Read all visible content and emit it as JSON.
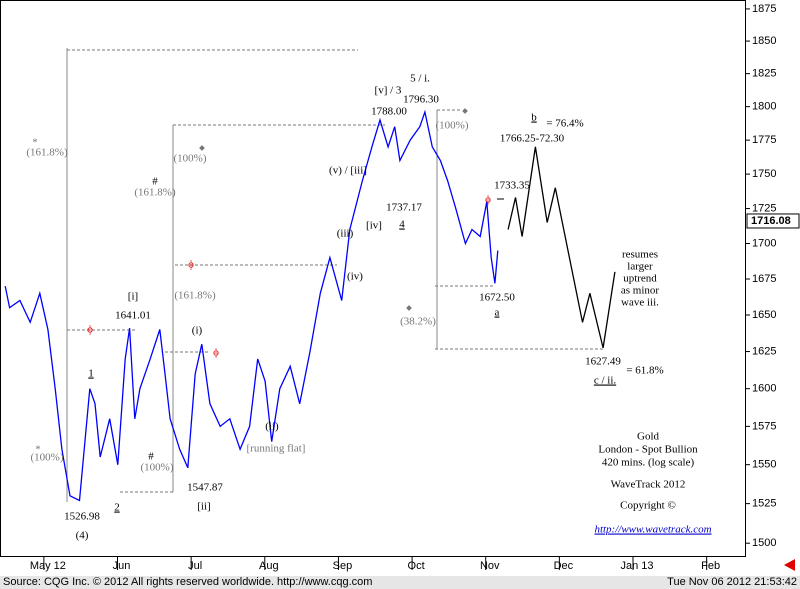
{
  "chart_data": {
    "type": "line",
    "log_scale": true,
    "xlim": [
      4.35,
      14.48
    ],
    "xticks": [
      {
        "value": 5,
        "label": "May 12"
      },
      {
        "value": 6,
        "label": "Jun"
      },
      {
        "value": 7,
        "label": "Jul"
      },
      {
        "value": 8,
        "label": "Aug"
      },
      {
        "value": 9,
        "label": "Sep"
      },
      {
        "value": 10,
        "label": "Oct"
      },
      {
        "value": 11,
        "label": "Nov"
      },
      {
        "value": 12,
        "label": "Dec"
      },
      {
        "value": 13,
        "label": "Jan 13"
      },
      {
        "value": 14,
        "label": "Feb"
      }
    ],
    "ylim": [
      1492,
      1882
    ],
    "yticks": [
      1500,
      1525,
      1550,
      1575,
      1600,
      1625,
      1650,
      1675,
      1700,
      1725,
      1750,
      1775,
      1800,
      1825,
      1850,
      1875
    ],
    "series": [
      {
        "color": "#0000ff",
        "x": [
          4.42,
          4.48,
          4.62,
          4.76,
          4.89,
          5.0,
          5.1,
          5.19,
          5.3,
          5.43,
          5.57,
          5.64,
          5.71,
          5.84,
          5.95,
          6.05,
          6.11,
          6.18,
          6.25,
          6.39,
          6.52,
          6.59,
          6.66,
          6.79,
          6.9,
          7.0,
          7.09,
          7.2,
          7.34,
          7.47,
          7.61,
          7.74,
          7.85,
          7.95,
          8.04,
          8.15,
          8.29,
          8.42,
          8.56,
          8.7,
          8.83,
          8.99,
          9.1,
          9.27,
          9.4,
          9.51,
          9.62,
          9.71,
          9.78,
          9.92,
          10.05,
          10.12,
          10.22,
          10.33,
          10.43,
          10.54,
          10.67,
          10.76,
          10.87,
          10.96,
          11.02,
          11.07,
          11.11
        ],
        "values": [
          1670,
          1655,
          1660,
          1645,
          1665,
          1640,
          1600,
          1560,
          1530,
          1527,
          1600,
          1590,
          1555,
          1580,
          1550,
          1620,
          1641,
          1580,
          1600,
          1620,
          1640,
          1610,
          1580,
          1560,
          1548,
          1610,
          1630,
          1590,
          1575,
          1580,
          1560,
          1575,
          1620,
          1605,
          1565,
          1600,
          1615,
          1590,
          1625,
          1665,
          1690,
          1660,
          1710,
          1745,
          1770,
          1790,
          1770,
          1785,
          1760,
          1775,
          1785,
          1796,
          1770,
          1760,
          1745,
          1725,
          1700,
          1710,
          1705,
          1730,
          1690,
          1672,
          1695
        ]
      },
      {
        "color": "#000000",
        "x": [
          11.25,
          11.35,
          11.44,
          11.62,
          11.78,
          11.89,
          12.26,
          12.36,
          12.54,
          12.7
        ],
        "values": [
          1710,
          1733,
          1705,
          1770,
          1715,
          1740,
          1645,
          1665,
          1627.5,
          1680
        ]
      }
    ],
    "last_price": 1716.08,
    "annotations": [
      "*",
      "(161.8%)",
      "*",
      "(100%)",
      "[i]",
      "1641.01",
      "1",
      "2",
      "1526.98",
      "(4)",
      "#",
      "(161.8%)",
      "(100%)",
      "(161.8%)",
      "(i)",
      "#",
      "(100%)",
      "1547.87",
      "[ii]",
      "(ii)",
      "[running flat]",
      "(iii)",
      "(iv)",
      "(v) / [iii]",
      "[iv]",
      "1737.17",
      "4",
      "[v] / 3",
      "1788.00",
      "5 / i.",
      "1796.30",
      "(100%)",
      "(38.2%)",
      "1672.50",
      "a",
      "1733.35",
      "b",
      "= 76.4%",
      "1766.25-72.30",
      "resumes",
      "larger",
      "uptrend",
      "as minor",
      "wave iii.",
      "1627.49",
      "c / ii.",
      "= 61.8%",
      "ϕ",
      "ϕ",
      "ϕ",
      "ϕ"
    ],
    "info": [
      "Gold",
      "London - Spot Bullion",
      "420 mins. (log scale)",
      "WaveTrack 2012",
      "Copyright ©",
      "http://www.wavetrack.com"
    ],
    "footer_left": "Source: CQG Inc. © 2012 All rights reserved worldwide.  http://www.cqg.com",
    "footer_right": "Tue Nov 06 2012 21:53:42"
  }
}
